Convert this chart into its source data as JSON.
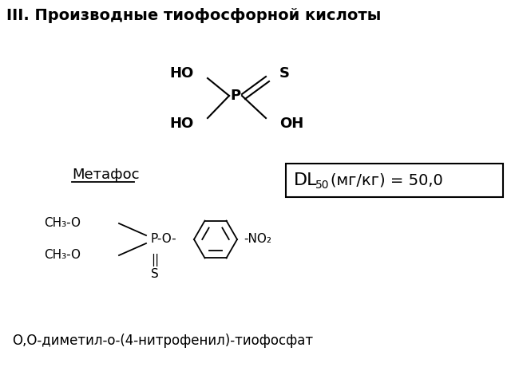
{
  "title": "III. Производные тиофосфорной кислоты",
  "title_fontsize": 14,
  "bg_color": "#ffffff",
  "text_color": "#000000",
  "metafos_label": "Метафос",
  "dl_box_rest": "(мг/кг) = 50,0",
  "iupac_name": "О,О-диметил-о-(4-нитрофенил)-тиофосфат",
  "acid_HO_top": "HO",
  "acid_S": "S",
  "acid_P": "P",
  "acid_HO_bot": "HO",
  "acid_OH": "OH",
  "ch3o_top": "CH₃-O",
  "ch3o_bot": "CH₃-O",
  "p_o_label": "P-O-",
  "double_bond": "||",
  "s_label": "S",
  "no2_label": "-NO₂"
}
